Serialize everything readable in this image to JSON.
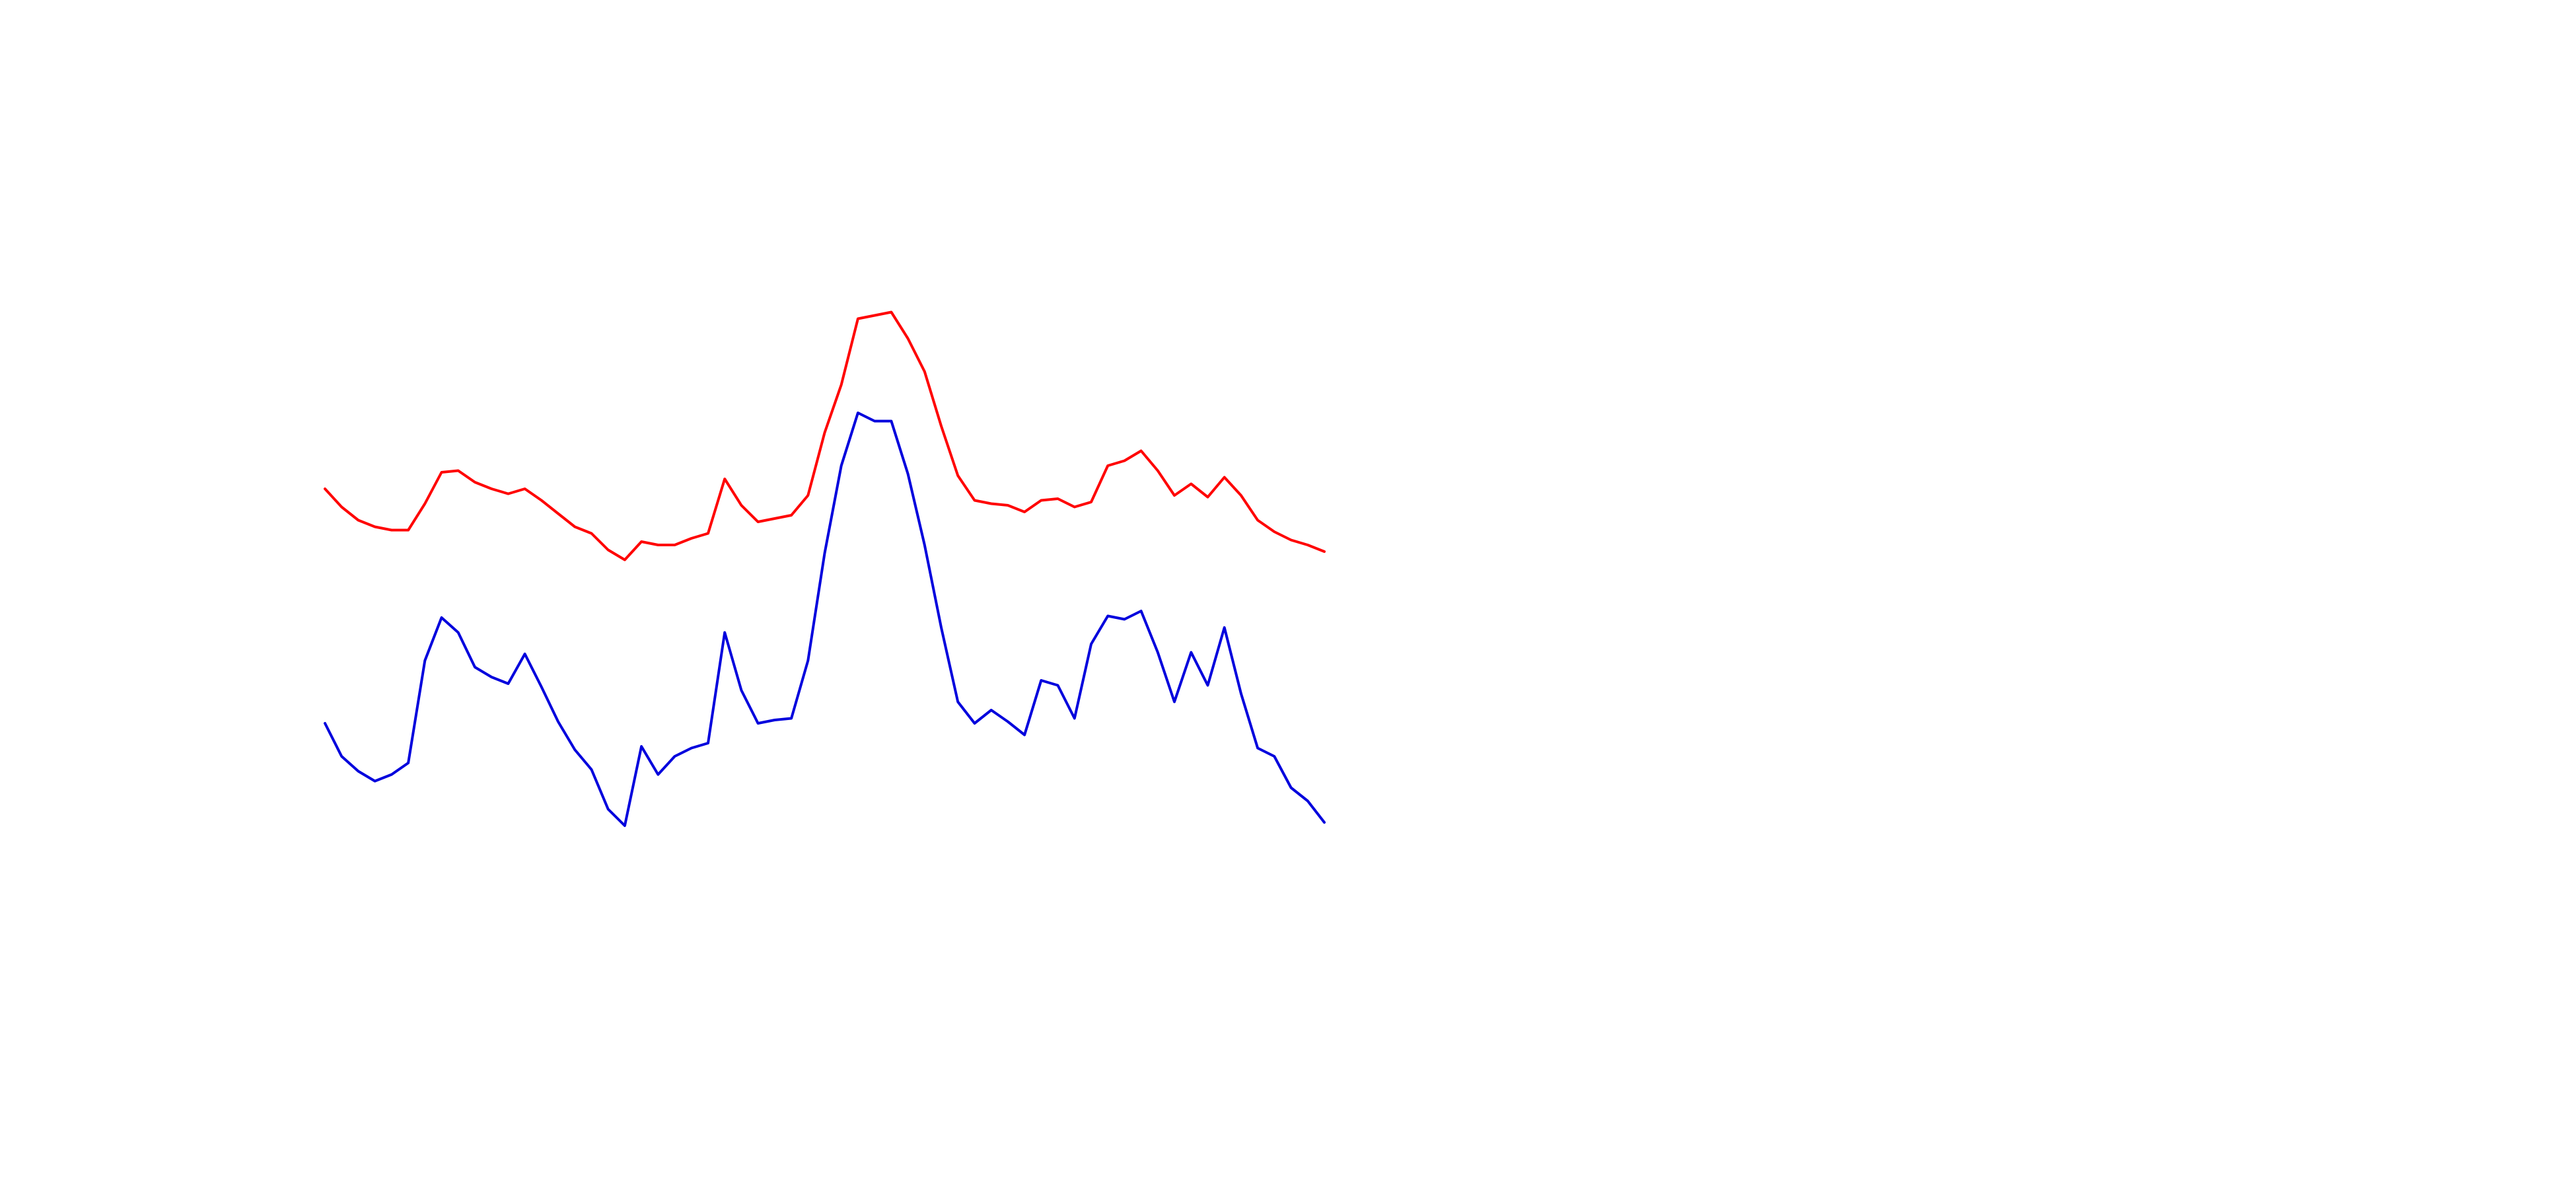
{
  "chart_data": {
    "type": "line",
    "categories": [
      null,
      null,
      null,
      null,
      null,
      null,
      null,
      null,
      null,
      null,
      null,
      null,
      null,
      null,
      null,
      null,
      null,
      null,
      null,
      null,
      null,
      null,
      null,
      null,
      null,
      null,
      null,
      null,
      null,
      null,
      null,
      null,
      null,
      null,
      null,
      null,
      null,
      null,
      null,
      null,
      null,
      null,
      null,
      null,
      null,
      null,
      null,
      null,
      null,
      null,
      null,
      null,
      null,
      null,
      null,
      null,
      null,
      null,
      null,
      null,
      null
    ],
    "series": [
      {
        "color": "#ff0000",
        "values": [
          424,
          413,
          405,
          401,
          399,
          399,
          415,
          434,
          435,
          428,
          424,
          421,
          424,
          417,
          409,
          401,
          397,
          387,
          381,
          392,
          390,
          390,
          394,
          397,
          430,
          414,
          404,
          406,
          408,
          420,
          458,
          487,
          527,
          529,
          531,
          515,
          495,
          462,
          432,
          417,
          415,
          414,
          410,
          417,
          418,
          413,
          416,
          438,
          441,
          447,
          435,
          420,
          427,
          419,
          431,
          420,
          405,
          398,
          393,
          390,
          386
        ]
      },
      {
        "color": "#0000dd",
        "values": [
          282,
          262,
          253,
          247,
          251,
          258,
          320,
          346,
          337,
          316,
          310,
          306,
          324,
          304,
          283,
          266,
          254,
          230,
          220,
          268,
          251,
          262,
          267,
          270,
          337,
          302,
          282,
          284,
          285,
          320,
          385,
          438,
          470,
          465,
          465,
          433,
          390,
          340,
          295,
          282,
          290,
          283,
          275,
          308,
          305,
          285,
          330,
          347,
          345,
          350,
          325,
          295,
          325,
          305,
          340,
          300,
          267,
          262,
          243,
          235,
          222
        ]
      }
    ],
    "ylim": [
      0,
      720
    ]
  }
}
